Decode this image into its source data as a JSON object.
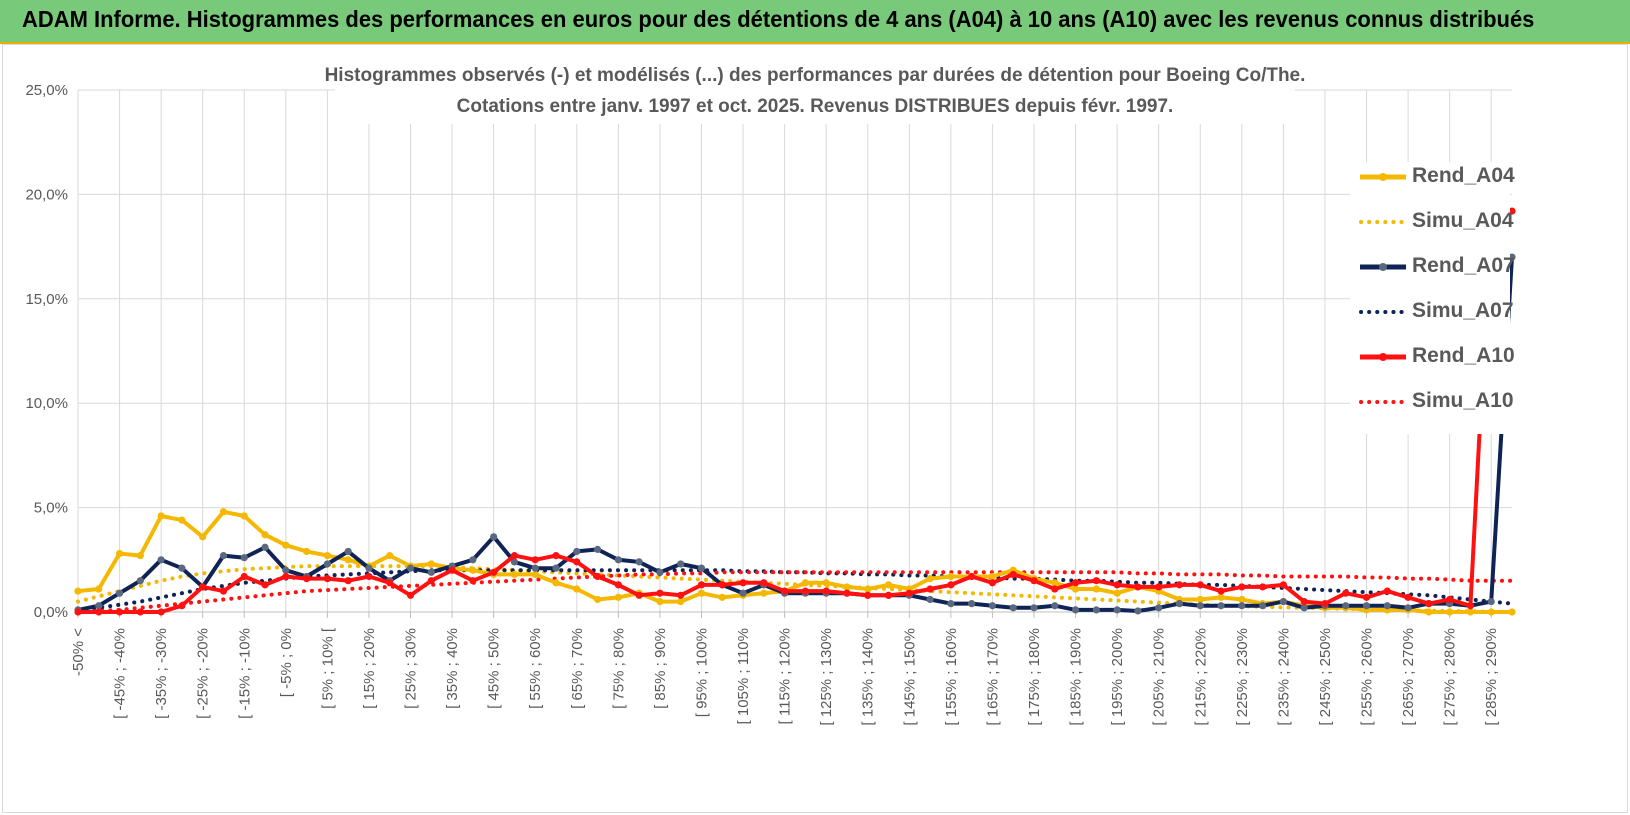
{
  "banner": {
    "title": "ADAM Informe. Histogrammes des performances en euros pour des détentions de 4 ans (A04) à 10 ans (A10) avec les revenus connus distribués"
  },
  "colors": {
    "banner_bg": "#79c97b",
    "A04": "#f5b800",
    "A07": "#0f2356",
    "A10": "#ff1111",
    "A07_marker": "#5a6880",
    "grid": "#d9d9d9",
    "text": "#595959"
  },
  "chart_data": {
    "type": "line",
    "title": "Histogrammes observés (-) et modélisés (...) des performances par durées de détention pour Boeing Co/The.",
    "subtitle": "Cotations entre janv. 1997 et oct. 2025.  Revenus DISTRIBUES depuis févr. 1997.",
    "xlabel": "",
    "ylabel": "",
    "ylim": [
      0,
      25
    ],
    "y_ticks": [
      "0,0%",
      "5,0%",
      "10,0%",
      "15,0%",
      "20,0%",
      "25,0%"
    ],
    "grid": true,
    "legend_position": "right",
    "x_tick_labels": [
      "-50% <",
      "[ -45% ; -40%",
      "[ -35% ; -30%",
      "[ -25% ; -20%",
      "[ -15% ; -10%",
      "[ -5% ; 0%",
      "[ 5% ; 10% [",
      "[ 15% ; 20%",
      "[ 25% ; 30%",
      "[ 35% ; 40%",
      "[ 45% ; 50%",
      "[ 55% ; 60%",
      "[ 65% ; 70%",
      "[ 75% ; 80%",
      "[ 85% ; 90%",
      "[ 95% ; 100%",
      "[ 105% ; 110%",
      "[ 115% ; 120%",
      "[ 125% ; 130%",
      "[ 135% ; 140%",
      "[ 145% ; 150%",
      "[ 155% ; 160%",
      "[ 165% ; 170%",
      "[ 175% ; 180%",
      "[ 185% ; 190%",
      "[ 195% ; 200%",
      "[ 205% ; 210%",
      "[ 215% ; 220%",
      "[ 225% ; 230%",
      "[ 235% ; 240%",
      "[ 245% ; 250%",
      "[ 255% ; 260%",
      "[ 265% ; 270%",
      "[ 275% ; 280%",
      "[ 285% ; 290%"
    ],
    "num_bins": 70,
    "series": [
      {
        "name": "Rend_A04",
        "style": "solid",
        "color_key": "A04",
        "values": [
          1.0,
          1.1,
          2.8,
          2.7,
          4.6,
          4.4,
          3.6,
          4.8,
          4.6,
          3.7,
          3.2,
          2.9,
          2.7,
          2.5,
          2.2,
          2.7,
          2.2,
          2.3,
          2.1,
          2.0,
          1.8,
          1.8,
          1.8,
          1.4,
          1.1,
          0.6,
          0.7,
          0.9,
          0.5,
          0.5,
          0.9,
          0.7,
          0.8,
          0.9,
          1.0,
          1.4,
          1.4,
          1.2,
          1.1,
          1.3,
          1.1,
          1.6,
          1.7,
          1.7,
          1.7,
          2.0,
          1.6,
          1.4,
          1.1,
          1.1,
          0.9,
          1.2,
          1.0,
          0.6,
          0.6,
          0.7,
          0.6,
          0.4,
          0.5,
          0.3,
          0.2,
          0.2,
          0.1,
          0.1,
          0.1,
          0.0,
          0.0,
          0.0,
          0.0,
          0.0
        ]
      },
      {
        "name": "Simu_A04",
        "style": "dotted",
        "color_key": "A04",
        "values": [
          0.5,
          0.75,
          1.0,
          1.25,
          1.5,
          1.7,
          1.85,
          1.95,
          2.05,
          2.1,
          2.15,
          2.2,
          2.2,
          2.2,
          2.2,
          2.2,
          2.2,
          2.2,
          2.15,
          2.1,
          2.05,
          2.0,
          1.95,
          1.9,
          1.85,
          1.8,
          1.75,
          1.7,
          1.65,
          1.6,
          1.55,
          1.5,
          1.45,
          1.4,
          1.35,
          1.3,
          1.25,
          1.2,
          1.15,
          1.1,
          1.05,
          1.0,
          0.95,
          0.9,
          0.85,
          0.8,
          0.75,
          0.7,
          0.65,
          0.6,
          0.55,
          0.5,
          0.45,
          0.4,
          0.35,
          0.3,
          0.28,
          0.25,
          0.22,
          0.2,
          0.18,
          0.15,
          0.12,
          0.1,
          0.08,
          0.06,
          0.05,
          0.04,
          0.02,
          0.0
        ]
      },
      {
        "name": "Rend_A07",
        "style": "solid",
        "color_key": "A07",
        "values": [
          0.1,
          0.3,
          0.9,
          1.5,
          2.5,
          2.1,
          1.2,
          2.7,
          2.6,
          3.1,
          2.0,
          1.7,
          2.3,
          2.9,
          2.1,
          1.5,
          2.1,
          1.9,
          2.2,
          2.5,
          3.6,
          2.4,
          2.1,
          2.1,
          2.9,
          3.0,
          2.5,
          2.4,
          1.9,
          2.3,
          2.1,
          1.3,
          0.9,
          1.3,
          0.9,
          0.9,
          0.9,
          0.9,
          0.8,
          0.8,
          0.8,
          0.6,
          0.4,
          0.4,
          0.3,
          0.2,
          0.2,
          0.3,
          0.1,
          0.1,
          0.1,
          0.05,
          0.2,
          0.4,
          0.3,
          0.3,
          0.3,
          0.3,
          0.5,
          0.2,
          0.3,
          0.3,
          0.3,
          0.3,
          0.2,
          0.4,
          0.4,
          0.3,
          0.5,
          17.0
        ]
      },
      {
        "name": "Simu_A07",
        "style": "dotted",
        "color_key": "A07",
        "values": [
          0.1,
          0.2,
          0.35,
          0.5,
          0.7,
          0.9,
          1.1,
          1.25,
          1.4,
          1.5,
          1.6,
          1.7,
          1.75,
          1.8,
          1.85,
          1.9,
          1.95,
          2.0,
          2.0,
          2.0,
          2.0,
          2.0,
          2.0,
          2.0,
          2.0,
          2.0,
          2.0,
          2.0,
          2.0,
          2.0,
          2.0,
          2.0,
          1.95,
          1.95,
          1.9,
          1.9,
          1.85,
          1.85,
          1.8,
          1.8,
          1.75,
          1.75,
          1.7,
          1.7,
          1.65,
          1.6,
          1.6,
          1.55,
          1.5,
          1.5,
          1.45,
          1.4,
          1.4,
          1.35,
          1.3,
          1.3,
          1.25,
          1.2,
          1.15,
          1.1,
          1.05,
          1.0,
          0.95,
          0.9,
          0.85,
          0.8,
          0.7,
          0.6,
          0.5,
          0.4
        ]
      },
      {
        "name": "Rend_A10",
        "style": "solid",
        "color_key": "A10",
        "values": [
          0.0,
          0.0,
          0.0,
          0.0,
          0.0,
          0.3,
          1.2,
          1.0,
          1.7,
          1.3,
          1.7,
          1.6,
          1.6,
          1.5,
          1.7,
          1.4,
          0.8,
          1.5,
          2.0,
          1.5,
          1.9,
          2.7,
          2.5,
          2.7,
          2.4,
          1.7,
          1.3,
          0.8,
          0.9,
          0.8,
          1.3,
          1.3,
          1.4,
          1.4,
          1.0,
          1.0,
          1.0,
          0.9,
          0.8,
          0.8,
          0.9,
          1.1,
          1.3,
          1.7,
          1.4,
          1.8,
          1.5,
          1.1,
          1.4,
          1.5,
          1.3,
          1.2,
          1.2,
          1.3,
          1.3,
          1.0,
          1.2,
          1.2,
          1.3,
          0.5,
          0.4,
          0.9,
          0.7,
          1.0,
          0.7,
          0.4,
          0.6,
          0.3,
          19.2,
          19.2
        ]
      },
      {
        "name": "Simu_A10",
        "style": "dotted",
        "color_key": "A10",
        "values": [
          0.0,
          0.05,
          0.1,
          0.2,
          0.3,
          0.4,
          0.5,
          0.6,
          0.7,
          0.8,
          0.9,
          1.0,
          1.05,
          1.1,
          1.15,
          1.2,
          1.25,
          1.3,
          1.35,
          1.4,
          1.45,
          1.5,
          1.55,
          1.6,
          1.65,
          1.7,
          1.75,
          1.8,
          1.8,
          1.85,
          1.85,
          1.9,
          1.9,
          1.9,
          1.9,
          1.9,
          1.9,
          1.9,
          1.9,
          1.9,
          1.9,
          1.9,
          1.9,
          1.9,
          1.9,
          1.9,
          1.9,
          1.9,
          1.9,
          1.9,
          1.9,
          1.85,
          1.85,
          1.8,
          1.8,
          1.8,
          1.75,
          1.75,
          1.7,
          1.7,
          1.7,
          1.7,
          1.65,
          1.65,
          1.6,
          1.6,
          1.55,
          1.5,
          1.5,
          1.5
        ]
      }
    ]
  }
}
